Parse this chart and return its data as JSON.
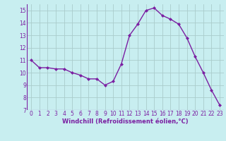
{
  "x": [
    0,
    1,
    2,
    3,
    4,
    5,
    6,
    7,
    8,
    9,
    10,
    11,
    12,
    13,
    14,
    15,
    16,
    17,
    18,
    19,
    20,
    21,
    22,
    23
  ],
  "y": [
    11.0,
    10.4,
    10.4,
    10.3,
    10.3,
    10.0,
    9.8,
    9.5,
    9.5,
    9.0,
    9.3,
    10.7,
    13.0,
    13.9,
    15.0,
    15.2,
    14.6,
    14.3,
    13.9,
    12.8,
    11.3,
    10.0,
    8.6,
    7.4
  ],
  "line_color": "#7b1fa2",
  "marker": "D",
  "marker_size": 2.0,
  "bg_color": "#c8eef0",
  "grid_color": "#aacccc",
  "xlabel": "Windchill (Refroidissement éolien,°C)",
  "xlabel_color": "#7b1fa2",
  "tick_color": "#7b1fa2",
  "ylim": [
    7,
    15.5
  ],
  "xlim": [
    -0.5,
    23.5
  ],
  "yticks": [
    7,
    8,
    9,
    10,
    11,
    12,
    13,
    14,
    15
  ],
  "xticks": [
    0,
    1,
    2,
    3,
    4,
    5,
    6,
    7,
    8,
    9,
    10,
    11,
    12,
    13,
    14,
    15,
    16,
    17,
    18,
    19,
    20,
    21,
    22,
    23
  ],
  "linewidth": 1.0,
  "tick_fontsize": 5.5,
  "xlabel_fontsize": 6.0
}
